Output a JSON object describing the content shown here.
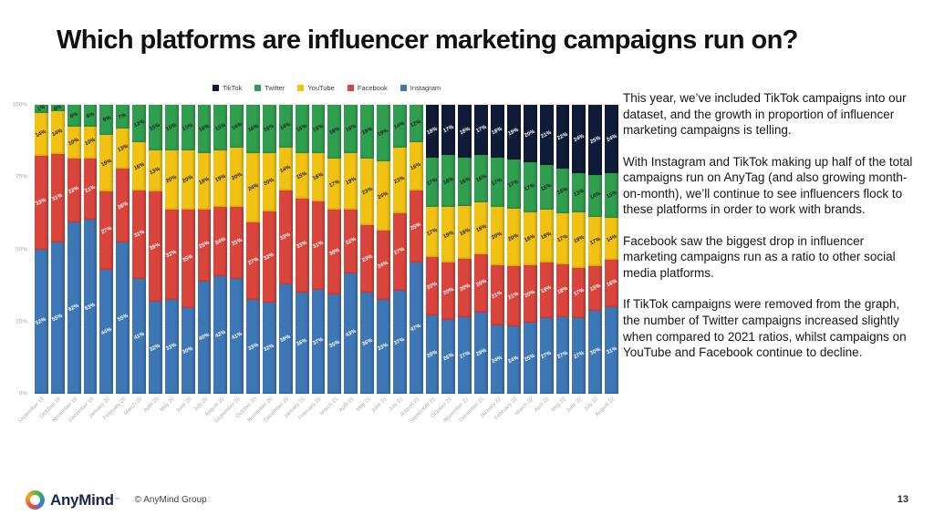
{
  "slide": {
    "title": "Which platforms are influencer marketing campaigns run on?",
    "page_number": "13",
    "footer": {
      "brand": "AnyMind",
      "trademark": "™",
      "copyright": "© AnyMind Group"
    },
    "commentary": {
      "paragraphs": [
        "This year, we’ve included TikTok campaigns into our dataset, and the growth in proportion of influencer marketing campaigns is telling.",
        "With Instagram and TikTok making up half of the total campaigns run on AnyTag (and also growing month-on-month), we’ll continue to see influencers flock to these platforms in order to work with brands.",
        "Facebook saw the biggest drop in influencer marketing campaigns run as a ratio to other social media platforms.",
        "If TikTok campaigns were removed from the graph, the number of Twitter campaigns increased slightly when compared to 2021 ratios, whilst campaigns on YouTube and Facebook continue to decline."
      ]
    }
  },
  "chart_data": {
    "type": "bar",
    "stacked": true,
    "unit": "%",
    "ylim": [
      0,
      100
    ],
    "y_ticks": [
      "0%",
      "25%",
      "50%",
      "75%",
      "100%"
    ],
    "legend_position": "top",
    "grid": true,
    "categories": [
      "September 19",
      "October 19",
      "November 19",
      "December 19",
      "January 20",
      "February 20",
      "March 20",
      "April 20",
      "May 20",
      "June 20",
      "July 20",
      "August 20",
      "September 20",
      "October 20",
      "November 20",
      "December 20",
      "January 21",
      "February 21",
      "March 21",
      "April 21",
      "May 21",
      "June 21",
      "July 21",
      "August 21",
      "September 21",
      "October 21",
      "November 21",
      "December 21",
      "January 22",
      "February 22",
      "March 22",
      "April 22",
      "May 22",
      "June 22",
      "July 22",
      "August 22"
    ],
    "series": [
      {
        "name": "TikTok",
        "color": "#101b38",
        "label_color": "#ffffff",
        "values": [
          null,
          null,
          null,
          null,
          null,
          null,
          null,
          null,
          null,
          null,
          null,
          null,
          null,
          null,
          null,
          null,
          null,
          null,
          null,
          null,
          null,
          null,
          null,
          null,
          18,
          17,
          18,
          17,
          18,
          19,
          20,
          21,
          22,
          24,
          25,
          24
        ]
      },
      {
        "name": "Twitter",
        "color": "#2f9e4e",
        "label_color": "#1d1d1d",
        "values": [
          1,
          0,
          6,
          6,
          9,
          7,
          12,
          15,
          15,
          15,
          16,
          15,
          14,
          16,
          16,
          14,
          16,
          16,
          18,
          16,
          18,
          19,
          14,
          12,
          17,
          18,
          16,
          16,
          17,
          17,
          17,
          15,
          15,
          13,
          14,
          15
        ]
      },
      {
        "name": "YouTube",
        "color": "#f2c213",
        "label_color": "#1d1d1d",
        "values": [
          14,
          14,
          10,
          10,
          19,
          13,
          16,
          13,
          20,
          20,
          19,
          19,
          20,
          24,
          20,
          14,
          15,
          16,
          17,
          19,
          23,
          24,
          23,
          16,
          17,
          19,
          18,
          18,
          20,
          20,
          18,
          18,
          17,
          19,
          17,
          14
        ]
      },
      {
        "name": "Facebook",
        "color": "#d9453d",
        "label_color": "#ffffff",
        "values": [
          33,
          31,
          22,
          21,
          27,
          26,
          31,
          39,
          32,
          35,
          25,
          24,
          25,
          27,
          32,
          33,
          33,
          31,
          30,
          22,
          23,
          24,
          27,
          25,
          20,
          20,
          20,
          20,
          21,
          21,
          20,
          19,
          18,
          17,
          15,
          16
        ]
      },
      {
        "name": "Instagram",
        "color": "#3d77b6",
        "label_color": "#ffffff",
        "values": [
          52,
          55,
          62,
          63,
          44,
          55,
          41,
          32,
          33,
          30,
          40,
          42,
          41,
          33,
          32,
          39,
          36,
          37,
          35,
          43,
          36,
          33,
          37,
          47,
          28,
          26,
          27,
          29,
          24,
          24,
          25,
          27,
          27,
          27,
          30,
          31
        ]
      }
    ]
  }
}
